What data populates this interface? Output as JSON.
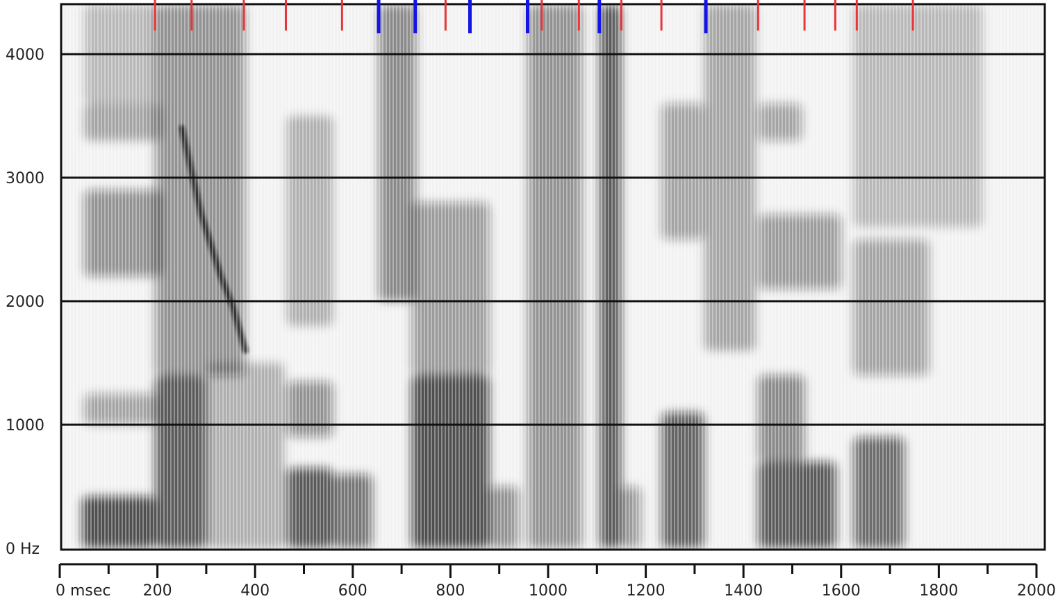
{
  "chart_data": {
    "type": "heatmap",
    "title": "",
    "xlabel": "",
    "ylabel": "",
    "xlim": [
      0,
      2000
    ],
    "ylim": [
      0,
      4400
    ],
    "y_ticks": [
      {
        "value": 0,
        "label": "0 Hz"
      },
      {
        "value": 1000,
        "label": "1000"
      },
      {
        "value": 2000,
        "label": "2000"
      },
      {
        "value": 3000,
        "label": "3000"
      },
      {
        "value": 4000,
        "label": "4000"
      }
    ],
    "x_ticks_major": [
      {
        "value": 0,
        "label": "0 msec"
      },
      {
        "value": 200,
        "label": "200"
      },
      {
        "value": 400,
        "label": "400"
      },
      {
        "value": 600,
        "label": "600"
      },
      {
        "value": 800,
        "label": "800"
      },
      {
        "value": 1000,
        "label": "1000"
      },
      {
        "value": 1200,
        "label": "1200"
      },
      {
        "value": 1400,
        "label": "1400"
      },
      {
        "value": 1600,
        "label": "1600"
      },
      {
        "value": 1800,
        "label": "1800"
      },
      {
        "value": 2000,
        "label": "2000"
      }
    ],
    "x_ticks_minor": [
      100,
      300,
      500,
      700,
      900,
      1100,
      1300,
      1500,
      1700,
      1900
    ],
    "segment_markers_red": [
      195,
      270,
      377,
      463,
      578,
      790,
      840,
      987,
      1063,
      1150,
      1232,
      1430,
      1525,
      1588,
      1632,
      1747
    ],
    "segment_markers_blue": [
      653,
      728,
      840,
      958,
      1105,
      1323
    ],
    "energy_regions": [
      {
        "t0": 45,
        "t1": 195,
        "f0": 0,
        "f1": 420,
        "level": 0.9
      },
      {
        "t0": 50,
        "t1": 200,
        "f0": 1000,
        "f1": 1250,
        "level": 0.45
      },
      {
        "t0": 50,
        "t1": 210,
        "f0": 2200,
        "f1": 2900,
        "level": 0.55
      },
      {
        "t0": 50,
        "t1": 210,
        "f0": 3300,
        "f1": 3600,
        "level": 0.4
      },
      {
        "t0": 50,
        "t1": 200,
        "f0": 3600,
        "f1": 4400,
        "level": 0.3
      },
      {
        "t0": 195,
        "t1": 300,
        "f0": 0,
        "f1": 1400,
        "level": 0.85
      },
      {
        "t0": 195,
        "t1": 380,
        "f0": 1400,
        "f1": 4400,
        "level": 0.55
      },
      {
        "t0": 300,
        "t1": 460,
        "f0": 0,
        "f1": 1500,
        "level": 0.35
      },
      {
        "t0": 465,
        "t1": 560,
        "f0": 0,
        "f1": 650,
        "level": 0.85
      },
      {
        "t0": 465,
        "t1": 560,
        "f0": 900,
        "f1": 1350,
        "level": 0.55
      },
      {
        "t0": 465,
        "t1": 560,
        "f0": 1800,
        "f1": 3500,
        "level": 0.35
      },
      {
        "t0": 560,
        "t1": 640,
        "f0": 0,
        "f1": 600,
        "level": 0.7
      },
      {
        "t0": 653,
        "t1": 730,
        "f0": 2000,
        "f1": 4400,
        "level": 0.6
      },
      {
        "t0": 720,
        "t1": 880,
        "f0": 0,
        "f1": 1400,
        "level": 0.9
      },
      {
        "t0": 720,
        "t1": 880,
        "f0": 1400,
        "f1": 2800,
        "level": 0.5
      },
      {
        "t0": 880,
        "t1": 940,
        "f0": 0,
        "f1": 500,
        "level": 0.55
      },
      {
        "t0": 958,
        "t1": 1070,
        "f0": 0,
        "f1": 4400,
        "level": 0.55
      },
      {
        "t0": 1105,
        "t1": 1150,
        "f0": 0,
        "f1": 4400,
        "level": 0.85
      },
      {
        "t0": 1150,
        "t1": 1190,
        "f0": 0,
        "f1": 500,
        "level": 0.5
      },
      {
        "t0": 1232,
        "t1": 1320,
        "f0": 0,
        "f1": 1100,
        "level": 0.8
      },
      {
        "t0": 1232,
        "t1": 1320,
        "f0": 2500,
        "f1": 3600,
        "level": 0.45
      },
      {
        "t0": 1320,
        "t1": 1425,
        "f0": 1600,
        "f1": 4400,
        "level": 0.4
      },
      {
        "t0": 1430,
        "t1": 1590,
        "f0": 0,
        "f1": 700,
        "level": 0.85
      },
      {
        "t0": 1430,
        "t1": 1525,
        "f0": 700,
        "f1": 1400,
        "level": 0.6
      },
      {
        "t0": 1430,
        "t1": 1600,
        "f0": 2100,
        "f1": 2700,
        "level": 0.5
      },
      {
        "t0": 1430,
        "t1": 1520,
        "f0": 3300,
        "f1": 3600,
        "level": 0.45
      },
      {
        "t0": 1625,
        "t1": 1730,
        "f0": 0,
        "f1": 900,
        "level": 0.75
      },
      {
        "t0": 1625,
        "t1": 1780,
        "f0": 1400,
        "f1": 2500,
        "level": 0.45
      },
      {
        "t0": 1625,
        "t1": 1890,
        "f0": 2600,
        "f1": 4400,
        "level": 0.3
      }
    ],
    "formant_track": [
      {
        "t": 250,
        "f": 3400
      },
      {
        "t": 290,
        "f": 2700
      },
      {
        "t": 330,
        "f": 2200
      },
      {
        "t": 355,
        "f": 1950
      },
      {
        "t": 380,
        "f": 1600
      }
    ],
    "grid": true,
    "colormap": "grayscale",
    "colors": {
      "background": "#f2f2f2",
      "ink": "#111111",
      "marker_red": "#e8343a",
      "marker_blue": "#1414e6"
    }
  }
}
